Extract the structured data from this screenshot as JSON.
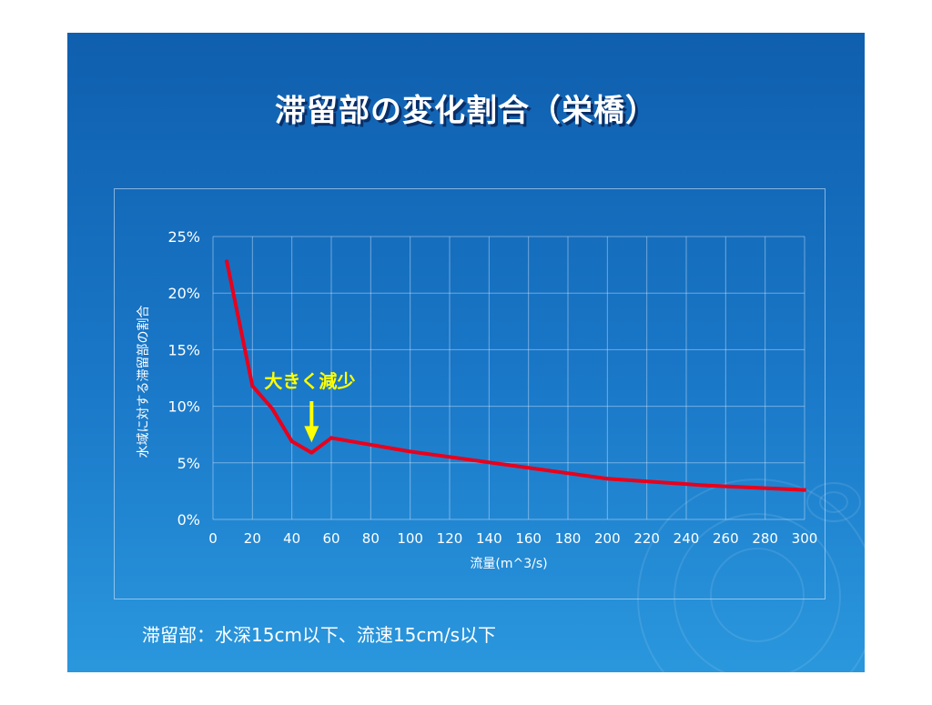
{
  "slide_title": "滞留部の変化割合（栄橋）",
  "footnote": "滞留部：水深15cm以下、流速15cm/s以下",
  "chart_data": {
    "type": "line",
    "title": "",
    "xlabel": "流量(m^3/s)",
    "ylabel": "水域に対する滞留部の割合",
    "xlim": [
      0,
      300
    ],
    "ylim": [
      0,
      25
    ],
    "x_ticks": [
      "0",
      "20",
      "40",
      "60",
      "80",
      "100",
      "120",
      "140",
      "160",
      "180",
      "200",
      "220",
      "240",
      "260",
      "280",
      "300"
    ],
    "y_ticks": [
      "0%",
      "5%",
      "10%",
      "15%",
      "20%",
      "25%"
    ],
    "grid": true,
    "series": [
      {
        "color": "#e8001c",
        "x": [
          7,
          20,
          30,
          40,
          50,
          60,
          100,
          150,
          200,
          250,
          300
        ],
        "y": [
          22.8,
          11.8,
          9.8,
          6.9,
          5.9,
          7.2,
          6.0,
          4.8,
          3.6,
          3.0,
          2.6
        ]
      }
    ],
    "annotation": {
      "text": "大きく減少",
      "color": "#ffff00",
      "arrow_to": [
        50,
        6.8
      ]
    }
  }
}
